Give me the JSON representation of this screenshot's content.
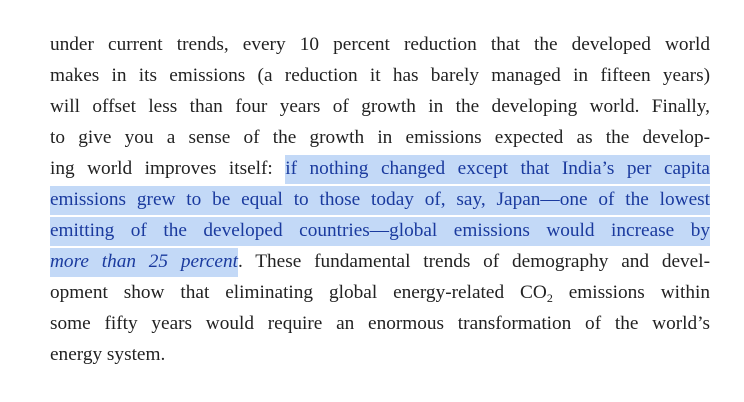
{
  "lines": [
    "under current trends, every 10 percent reduction that the developed world",
    "makes in its emissions (a reduction it has barely managed in fifteen years)",
    "will offset less than four years of growth in the developing world. Finally,",
    "to give you a sense of the growth in emissions expected as the develop-"
  ],
  "line5": {
    "plain": "ing world improves itself: ",
    "highlight": "if nothing changed except that India’s per capita"
  },
  "line6": {
    "highlight": "emissions grew to be equal to those today of, say, Japan—one of the lowest"
  },
  "line7": {
    "highlight": "emitting of the developed countries—global emissions would increase by"
  },
  "line8": {
    "highlight_italic": "more than 25 percent",
    "plain": ". These fundamental trends of demography and devel-"
  },
  "line9": {
    "before": "opment show that eliminating global energy-related CO",
    "subscript": "2",
    "after": " emissions within"
  },
  "line10": "some fifty years would require an enormous transformation of the world’s",
  "line11": "energy system."
}
